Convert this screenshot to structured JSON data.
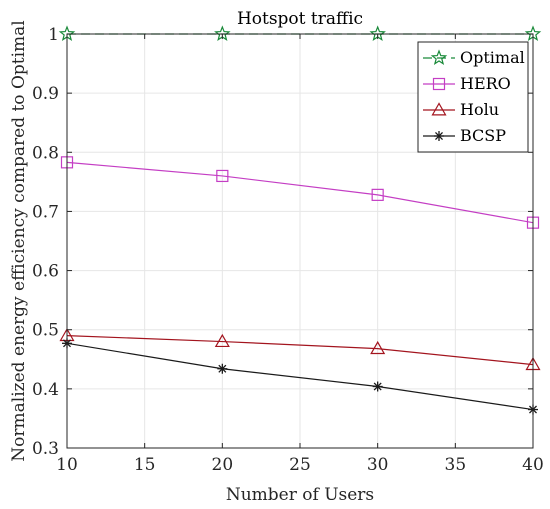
{
  "chart_data": {
    "type": "line",
    "title": "Hotspot traffic",
    "xlabel": "Number of Users",
    "ylabel": "Normalized energy efficiency compared to Optimal",
    "x": [
      10,
      20,
      30,
      40
    ],
    "xlim": [
      10,
      40
    ],
    "ylim": [
      0.3,
      1.0
    ],
    "xticks": [
      10,
      15,
      20,
      25,
      30,
      35,
      40
    ],
    "yticks": [
      0.3,
      0.4,
      0.5,
      0.6,
      0.7,
      0.8,
      0.9,
      1.0
    ],
    "xtick_labels": [
      "10",
      "15",
      "20",
      "25",
      "30",
      "35",
      "40"
    ],
    "ytick_labels": [
      "0.3",
      "0.4",
      "0.5",
      "0.6",
      "0.7",
      "0.8",
      "0.9",
      "1"
    ],
    "grid": true,
    "legend_position": "top-right",
    "series": [
      {
        "name": "Optimal",
        "values": [
          1.0,
          1.0,
          1.0,
          1.0
        ],
        "color": "#1a8a3a",
        "marker": "star",
        "line": "dashed"
      },
      {
        "name": "HERO",
        "values": [
          0.783,
          0.76,
          0.728,
          0.681
        ],
        "color": "#c43ec4",
        "marker": "square",
        "line": "solid"
      },
      {
        "name": "Holu",
        "values": [
          0.49,
          0.48,
          0.468,
          0.441
        ],
        "color": "#a3141e",
        "marker": "triangle",
        "line": "solid"
      },
      {
        "name": "BCSP",
        "values": [
          0.477,
          0.434,
          0.404,
          0.365
        ],
        "color": "#1a1a1a",
        "marker": "asterisk",
        "line": "solid"
      }
    ]
  }
}
